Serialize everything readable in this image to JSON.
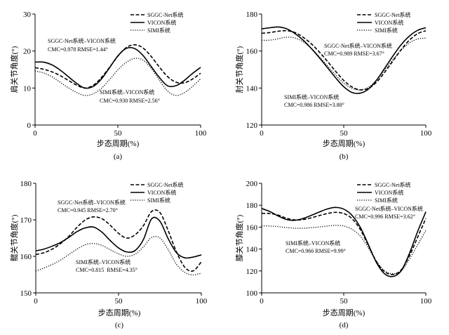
{
  "chart_data": [
    {
      "type": "line",
      "panel_label": "(a)",
      "xlabel": "步态周期(%)",
      "ylabel": "肩关节角度(°)",
      "xlim": [
        0,
        100
      ],
      "ylim": [
        0,
        30
      ],
      "xticks": [
        0,
        50,
        100
      ],
      "yticks": [
        0,
        10,
        20,
        30
      ],
      "grid": false,
      "legend_position": "top-right",
      "x": [
        0,
        5,
        10,
        15,
        20,
        25,
        30,
        35,
        40,
        45,
        50,
        55,
        60,
        65,
        70,
        75,
        80,
        85,
        90,
        95,
        100
      ],
      "series": [
        {
          "name": "SGGC-Net系统",
          "line_style": "dashed",
          "color": "#000000",
          "values": [
            15.5,
            15.1,
            14.4,
            13.4,
            12.1,
            10.8,
            10.0,
            10.7,
            12.8,
            15.6,
            18.6,
            20.9,
            21.7,
            20.9,
            18.6,
            15.7,
            13.1,
            11.6,
            11.4,
            12.4,
            14.0
          ]
        },
        {
          "name": "VICON系统",
          "line_style": "solid",
          "color": "#000000",
          "values": [
            17.0,
            17.0,
            16.3,
            14.9,
            13.1,
            11.3,
            10.0,
            10.4,
            12.4,
            15.5,
            18.7,
            20.7,
            20.7,
            18.9,
            15.9,
            12.9,
            10.6,
            10.6,
            12.0,
            13.9,
            15.6
          ]
        },
        {
          "name": "SIMI系统",
          "line_style": "dotted",
          "color": "#000000",
          "values": [
            14.6,
            14.1,
            13.1,
            11.6,
            10.1,
            8.8,
            8.0,
            8.4,
            9.9,
            12.3,
            14.9,
            16.9,
            18.0,
            17.6,
            15.4,
            12.2,
            9.2,
            8.0,
            8.7,
            10.4,
            12.5
          ]
        }
      ],
      "annotations": [
        {
          "title": "SGGC-Net系统–VICON系统",
          "stats": "CMC=0.978 RMSE=1.44°"
        },
        {
          "title": "SIMI系统–VICON系统",
          "stats": "CMC=0.930 RMSE=2.56°"
        }
      ]
    },
    {
      "type": "line",
      "panel_label": "(b)",
      "xlabel": "步态周期(%)",
      "ylabel": "肘关节角度(°)",
      "xlim": [
        0,
        100
      ],
      "ylim": [
        120,
        180
      ],
      "xticks": [
        0,
        50,
        100
      ],
      "yticks": [
        120,
        140,
        160,
        180
      ],
      "grid": false,
      "legend_position": "top-right",
      "x": [
        0,
        5,
        10,
        15,
        20,
        25,
        30,
        35,
        40,
        45,
        50,
        55,
        60,
        65,
        70,
        75,
        80,
        85,
        90,
        95,
        100
      ],
      "series": [
        {
          "name": "SGGC-Net系统",
          "line_style": "dashed",
          "color": "#000000",
          "values": [
            169.6,
            170.0,
            170.7,
            171.0,
            170.1,
            167.6,
            164.1,
            159.6,
            154.5,
            149.1,
            144.1,
            140.6,
            139.0,
            139.8,
            143.2,
            148.6,
            154.7,
            160.8,
            165.9,
            169.4,
            171.0
          ]
        },
        {
          "name": "VICON系统",
          "line_style": "solid",
          "color": "#000000",
          "values": [
            172.0,
            172.6,
            173.0,
            172.1,
            169.6,
            166.1,
            161.6,
            156.5,
            151.1,
            145.6,
            140.7,
            137.6,
            137.2,
            139.4,
            144.3,
            150.8,
            157.4,
            163.5,
            168.1,
            171.2,
            172.6
          ]
        },
        {
          "name": "SIMI系统",
          "line_style": "dotted",
          "color": "#000000",
          "values": [
            165.8,
            165.9,
            166.6,
            167.5,
            167.1,
            165.1,
            161.6,
            157.1,
            152.1,
            147.1,
            142.6,
            139.8,
            139.0,
            140.4,
            144.3,
            149.8,
            155.4,
            160.5,
            164.4,
            166.5,
            167.0
          ]
        }
      ],
      "annotations": [
        {
          "title": "SGGC-Net系统–VICON系统",
          "stats": "CMC=0.989 RMSE=3.67°"
        },
        {
          "title": "SIMI系统–VICON系统",
          "stats": "CMC=0.986 RMSE=3.88°"
        }
      ]
    },
    {
      "type": "line",
      "panel_label": "(c)",
      "xlabel": "步态周期(%)",
      "ylabel": "髋关节角度(°)",
      "xlim": [
        0,
        100
      ],
      "ylim": [
        150,
        180
      ],
      "xticks": [
        0,
        50,
        100
      ],
      "yticks": [
        150,
        160,
        170,
        180
      ],
      "grid": false,
      "legend_position": "top-right",
      "x": [
        0,
        5,
        10,
        15,
        20,
        25,
        30,
        35,
        40,
        45,
        50,
        55,
        60,
        65,
        70,
        75,
        80,
        85,
        90,
        95,
        100
      ],
      "series": [
        {
          "name": "SGGC-Net系统",
          "line_style": "dashed",
          "color": "#000000",
          "values": [
            160.5,
            161.0,
            162.0,
            163.5,
            165.5,
            168.0,
            170.0,
            170.8,
            170.3,
            168.5,
            166.3,
            165.0,
            165.9,
            168.4,
            172.3,
            172.0,
            167.0,
            161.2,
            157.0,
            156.0,
            158.5
          ]
        },
        {
          "name": "VICON系统",
          "line_style": "solid",
          "color": "#000000",
          "values": [
            161.5,
            162.0,
            162.8,
            163.8,
            165.2,
            166.8,
            167.8,
            168.0,
            166.6,
            164.3,
            162.3,
            161.2,
            161.6,
            164.6,
            170.3,
            169.6,
            164.8,
            161.0,
            159.6,
            159.8,
            160.4
          ]
        },
        {
          "name": "SIMI系统",
          "line_style": "dotted",
          "color": "#000000",
          "values": [
            156.0,
            156.8,
            157.8,
            159.0,
            160.5,
            162.0,
            163.2,
            163.5,
            163.0,
            161.8,
            160.7,
            160.0,
            160.6,
            162.6,
            165.2,
            165.0,
            161.8,
            157.8,
            155.6,
            154.9,
            155.4
          ]
        }
      ],
      "annotations": [
        {
          "title": "SGGC-Net系统–VICON系统",
          "stats": "CMC=0.945 RMSE=2.70°"
        },
        {
          "title": "SIMI系统–VICON系统",
          "stats": "CMC=0.815  RMSE=4.35°"
        }
      ]
    },
    {
      "type": "line",
      "panel_label": "(d)",
      "xlabel": "步态周期(%)",
      "ylabel": "膝关节角度(°)",
      "xlim": [
        0,
        100
      ],
      "ylim": [
        100,
        200
      ],
      "xticks": [
        0,
        50,
        100
      ],
      "yticks": [
        100,
        120,
        140,
        160,
        180,
        200
      ],
      "grid": false,
      "legend_position": "top-right",
      "x": [
        0,
        5,
        10,
        15,
        20,
        25,
        30,
        35,
        40,
        45,
        50,
        55,
        60,
        65,
        70,
        75,
        80,
        85,
        90,
        95,
        100
      ],
      "series": [
        {
          "name": "SGGC-Net系统",
          "line_style": "dashed",
          "color": "#000000",
          "values": [
            172.5,
            172.4,
            171.0,
            168.2,
            166.6,
            166.9,
            168.4,
            170.5,
            172.4,
            173.5,
            172.4,
            167.8,
            158.0,
            143.2,
            128.3,
            119.2,
            116.8,
            121.0,
            133.8,
            150.8,
            168.0
          ]
        },
        {
          "name": "VICON系统",
          "line_style": "solid",
          "color": "#000000",
          "values": [
            177.0,
            174.2,
            170.2,
            167.0,
            166.2,
            167.8,
            170.6,
            173.7,
            176.6,
            178.0,
            176.4,
            170.8,
            160.0,
            144.0,
            127.4,
            117.2,
            115.0,
            120.2,
            136.0,
            156.0,
            174.0
          ]
        },
        {
          "name": "SIMI系统",
          "line_style": "dotted",
          "color": "#000000",
          "values": [
            161.2,
            161.0,
            160.5,
            159.6,
            159.0,
            159.0,
            159.5,
            160.1,
            161.0,
            161.6,
            161.0,
            158.0,
            152.0,
            141.0,
            128.6,
            120.0,
            117.5,
            120.0,
            130.8,
            143.8,
            157.0
          ]
        }
      ],
      "annotations": [
        {
          "title": "SGGC-Net系统–VICON系统",
          "stats": "CMC=0.996 RMSE=3.62°"
        },
        {
          "title": "SIMI系统–VICON系统",
          "stats": "CMC=0.966 RMSE=9.99°"
        }
      ]
    }
  ]
}
